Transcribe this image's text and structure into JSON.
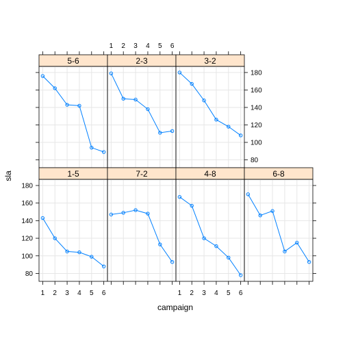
{
  "chart_data": {
    "type": "line",
    "xlabel": "campaign",
    "ylabel": "sla",
    "xlim": [
      0.7,
      6.3
    ],
    "ylim": [
      71,
      187
    ],
    "x_ticks": [
      "1",
      "2",
      "3",
      "4",
      "5",
      "6"
    ],
    "y_ticks": [
      80,
      100,
      120,
      140,
      160,
      180
    ],
    "grid": true,
    "colors": {
      "strip": "#ffe5cc",
      "line": "#0080ff",
      "grid": "#e6e6e6"
    },
    "panels": [
      {
        "label": "5-6",
        "x": [
          1,
          2,
          3,
          4,
          5,
          6
        ],
        "y": [
          176,
          162,
          143,
          142,
          94,
          89
        ]
      },
      {
        "label": "2-3",
        "x": [
          1,
          2,
          3,
          4,
          5,
          6
        ],
        "y": [
          179,
          150,
          149,
          138,
          111,
          113
        ]
      },
      {
        "label": "3-2",
        "x": [
          1,
          2,
          3,
          4,
          5,
          6
        ],
        "y": [
          180,
          167,
          148,
          126,
          118,
          108
        ]
      },
      {
        "label": "1-5",
        "x": [
          1,
          2,
          3,
          4,
          5,
          6
        ],
        "y": [
          143,
          120,
          105,
          104,
          99,
          88
        ]
      },
      {
        "label": "7-2",
        "x": [
          1,
          2,
          3,
          4,
          5,
          6
        ],
        "y": [
          147,
          149,
          152,
          148,
          113,
          93
        ]
      },
      {
        "label": "4-8",
        "x": [
          1,
          2,
          3,
          4,
          5,
          6
        ],
        "y": [
          167,
          157,
          120,
          111,
          98,
          78
        ]
      },
      {
        "label": "6-8",
        "x": [
          1,
          2,
          3,
          4,
          5,
          6
        ],
        "y": [
          170,
          146,
          151,
          105,
          115,
          93
        ]
      }
    ]
  }
}
